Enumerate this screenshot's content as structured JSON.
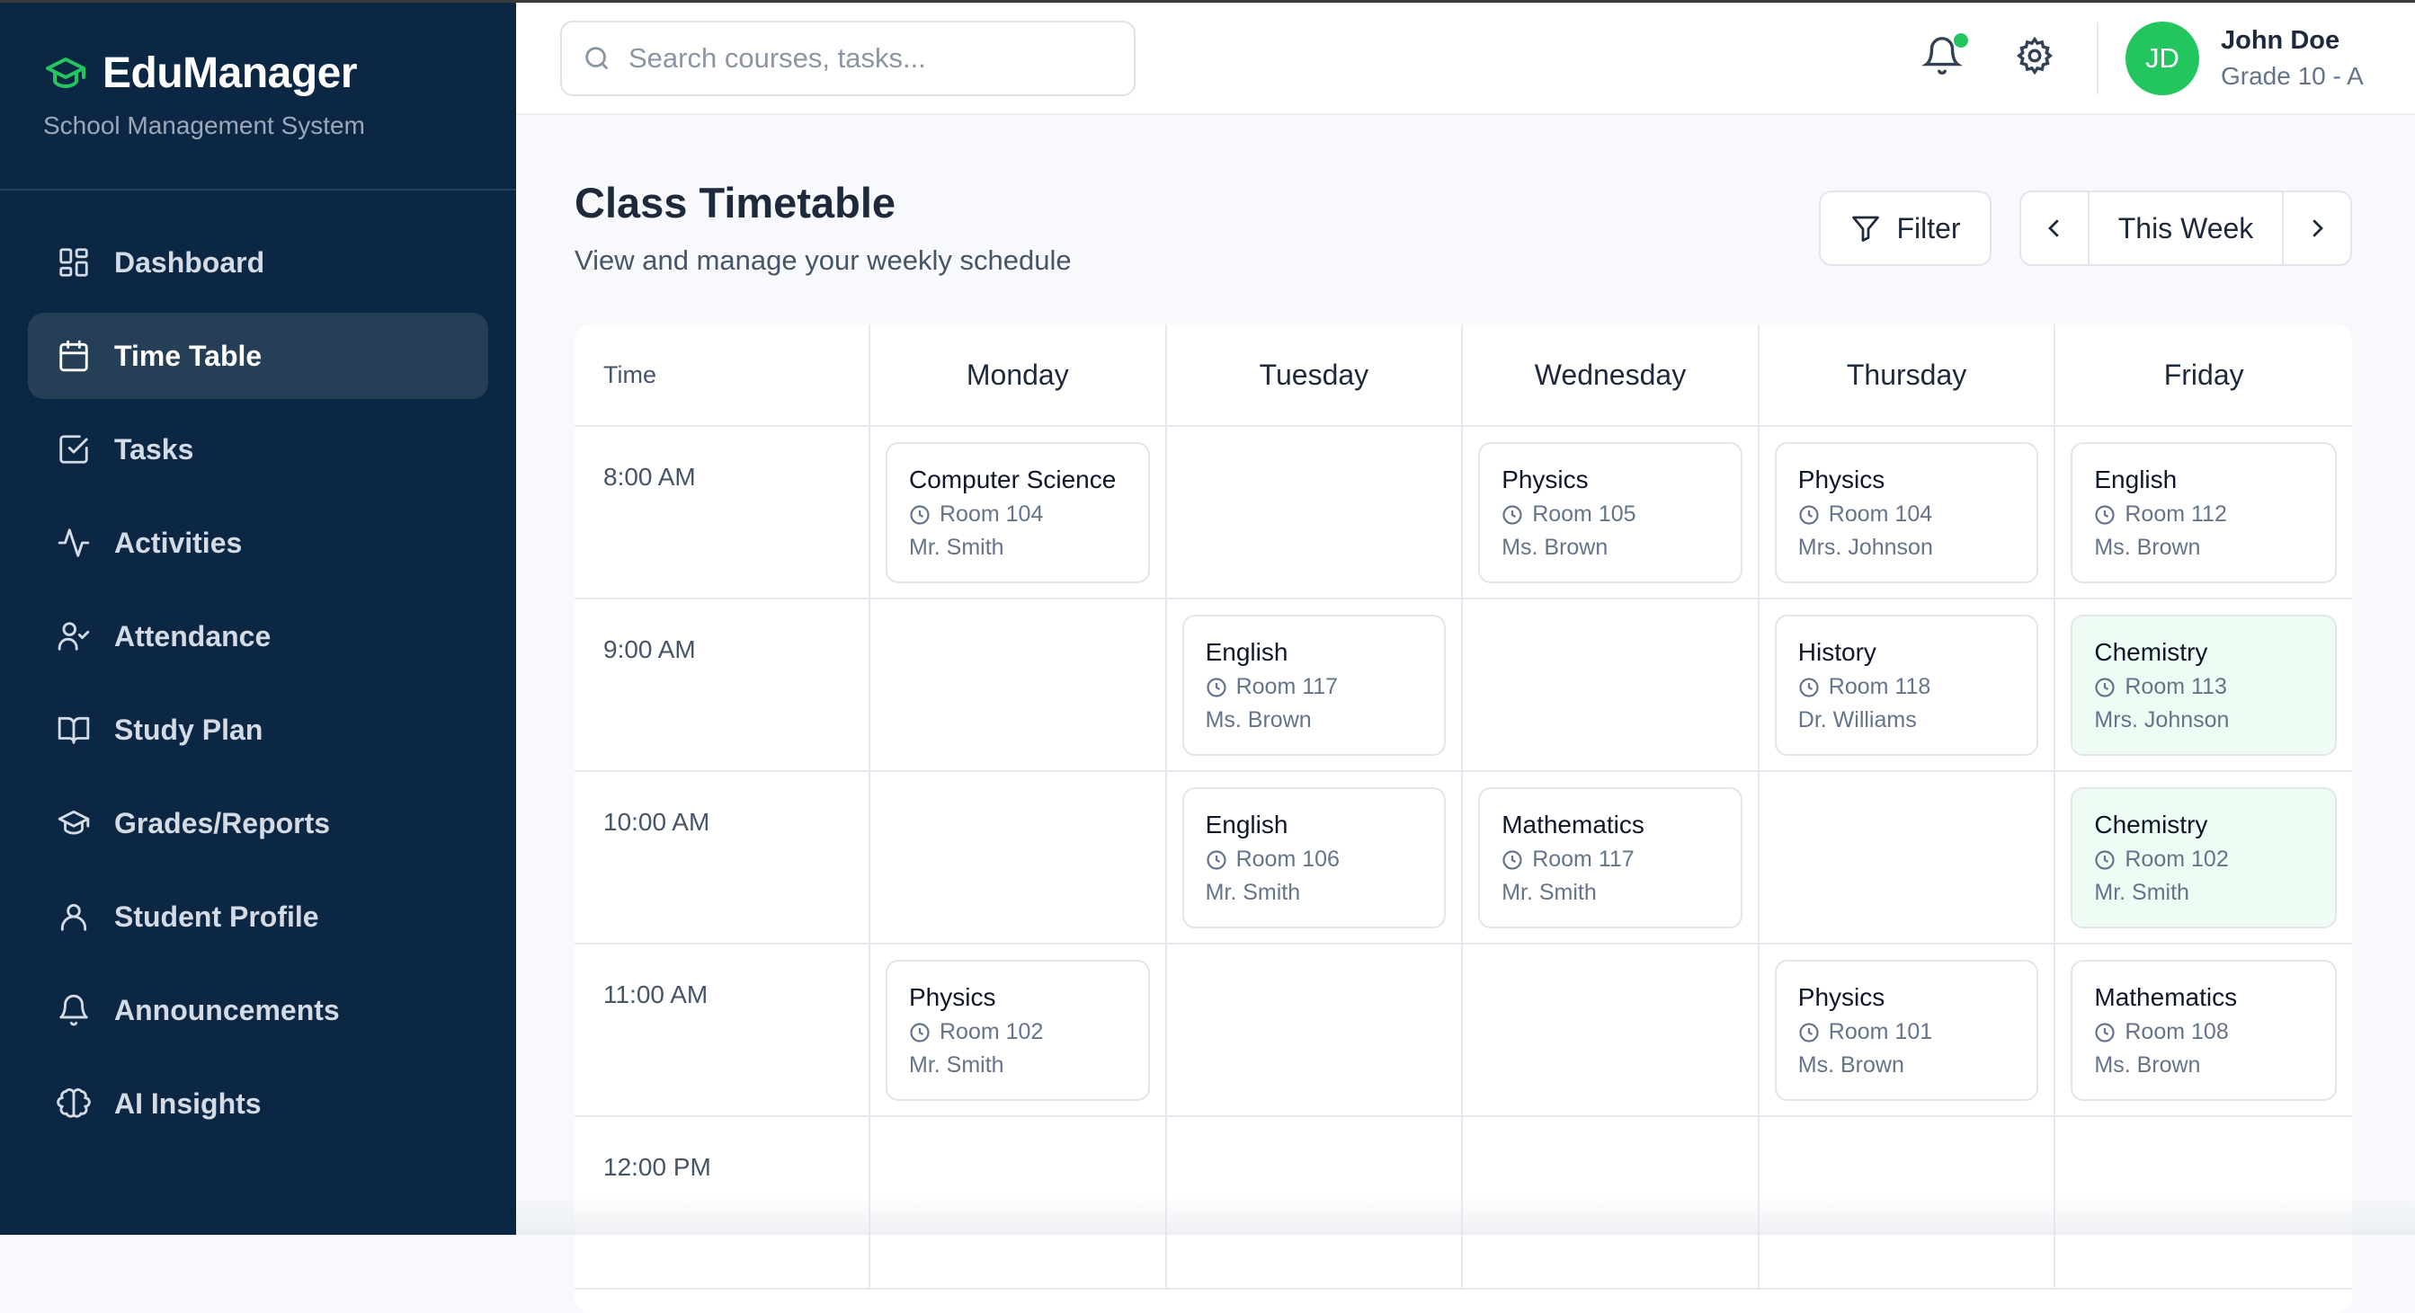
{
  "app": {
    "name": "EduManager",
    "subtitle": "School Management System",
    "accent": "#22c55e",
    "sidebar_bg": "#0c2744"
  },
  "sidebar": {
    "items": [
      {
        "label": "Dashboard",
        "icon": "dashboard-icon"
      },
      {
        "label": "Time Table",
        "icon": "calendar-icon",
        "active": true
      },
      {
        "label": "Tasks",
        "icon": "checkbox-icon"
      },
      {
        "label": "Activities",
        "icon": "activity-icon"
      },
      {
        "label": "Attendance",
        "icon": "user-check-icon"
      },
      {
        "label": "Study Plan",
        "icon": "book-icon"
      },
      {
        "label": "Grades/Reports",
        "icon": "graduation-cap-icon"
      },
      {
        "label": "Student Profile",
        "icon": "user-icon"
      },
      {
        "label": "Announcements",
        "icon": "bell-icon"
      },
      {
        "label": "AI Insights",
        "icon": "brain-icon"
      }
    ]
  },
  "header": {
    "search_placeholder": "Search courses, tasks...",
    "user": {
      "initials": "JD",
      "name": "John Doe",
      "grade": "Grade 10 - A"
    }
  },
  "page": {
    "title": "Class Timetable",
    "subtitle": "View and manage your weekly schedule",
    "filter_label": "Filter",
    "week_label": "This Week"
  },
  "timetable": {
    "time_header": "Time",
    "days": [
      "Monday",
      "Tuesday",
      "Wednesday",
      "Thursday",
      "Friday"
    ],
    "rows": [
      {
        "time": "8:00 AM",
        "slots": [
          {
            "subject": "Computer Science",
            "room": "Room 104",
            "teacher": "Mr. Smith"
          },
          null,
          {
            "subject": "Physics",
            "room": "Room 105",
            "teacher": "Ms. Brown"
          },
          {
            "subject": "Physics",
            "room": "Room 104",
            "teacher": "Mrs. Johnson"
          },
          {
            "subject": "English",
            "room": "Room 112",
            "teacher": "Ms. Brown"
          }
        ]
      },
      {
        "time": "9:00 AM",
        "slots": [
          null,
          {
            "subject": "English",
            "room": "Room 117",
            "teacher": "Ms. Brown"
          },
          null,
          {
            "subject": "History",
            "room": "Room 118",
            "teacher": "Dr. Williams"
          },
          {
            "subject": "Chemistry",
            "room": "Room 113",
            "teacher": "Mrs. Johnson",
            "highlight": true
          }
        ]
      },
      {
        "time": "10:00 AM",
        "slots": [
          null,
          {
            "subject": "English",
            "room": "Room 106",
            "teacher": "Mr. Smith"
          },
          {
            "subject": "Mathematics",
            "room": "Room 117",
            "teacher": "Mr. Smith"
          },
          null,
          {
            "subject": "Chemistry",
            "room": "Room 102",
            "teacher": "Mr. Smith",
            "highlight": true
          }
        ]
      },
      {
        "time": "11:00 AM",
        "slots": [
          {
            "subject": "Physics",
            "room": "Room 102",
            "teacher": "Mr. Smith"
          },
          null,
          null,
          {
            "subject": "Physics",
            "room": "Room 101",
            "teacher": "Ms. Brown"
          },
          {
            "subject": "Mathematics",
            "room": "Room 108",
            "teacher": "Ms. Brown"
          }
        ]
      },
      {
        "time": "12:00 PM",
        "slots": [
          null,
          null,
          null,
          null,
          null
        ]
      }
    ]
  }
}
